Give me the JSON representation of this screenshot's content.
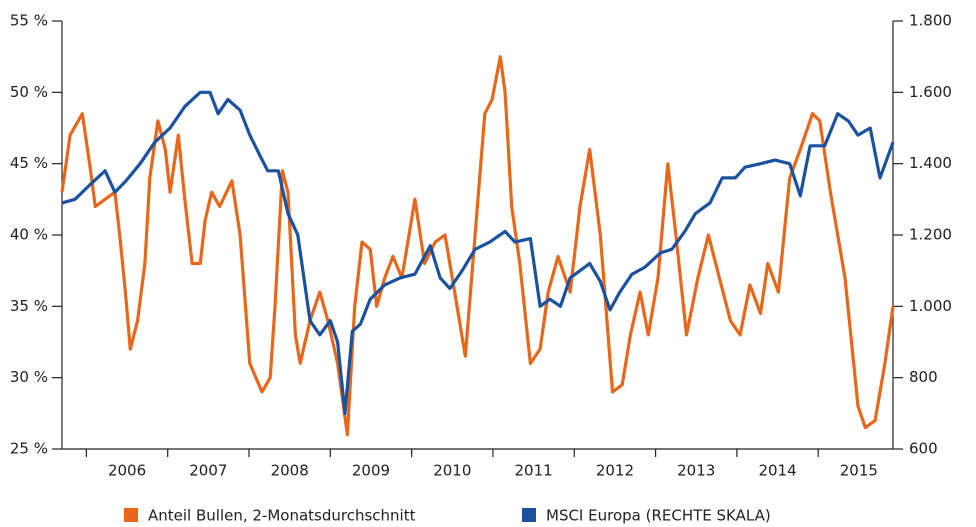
{
  "chart_data": {
    "type": "line",
    "xlim": [
      2005.7,
      2015.92
    ],
    "xticks": [
      2006,
      2007,
      2008,
      2009,
      2010,
      2011,
      2012,
      2013,
      2014,
      2015
    ],
    "ylim": [
      25,
      55
    ],
    "yticks": [
      {
        "value": 25,
        "label": "25 %"
      },
      {
        "value": 30,
        "label": "30 %"
      },
      {
        "value": 35,
        "label": "35 %"
      },
      {
        "value": 40,
        "label": "40 %"
      },
      {
        "value": 45,
        "label": "45 %"
      },
      {
        "value": 50,
        "label": "50 %"
      },
      {
        "value": 55,
        "label": "55 %"
      }
    ],
    "y2lim": [
      600,
      1800
    ],
    "y2ticks": [
      600,
      800,
      {
        "value": 1000,
        "label": "1.000"
      },
      {
        "value": 1200,
        "label": "1.200"
      },
      {
        "value": 1400,
        "label": "1.400"
      },
      {
        "value": 1600,
        "label": "1.600"
      },
      {
        "value": 1800,
        "label": "1.800"
      }
    ],
    "series": [
      {
        "name": "Anteil Bullen, 2-Monatsdurchschnitt",
        "color": "#e8671b",
        "x": [
          2005.7,
          2005.8,
          2005.95,
          2006.04,
          2006.11,
          2006.23,
          2006.35,
          2006.41,
          2006.48,
          2006.54,
          2006.63,
          2006.72,
          2006.78,
          2006.88,
          2006.97,
          2007.03,
          2007.13,
          2007.21,
          2007.3,
          2007.4,
          2007.46,
          2007.54,
          2007.64,
          2007.79,
          2007.89,
          2008.01,
          2008.16,
          2008.26,
          2008.32,
          2008.41,
          2008.48,
          2008.57,
          2008.63,
          2008.75,
          2008.87,
          2008.97,
          2009.09,
          2009.21,
          2009.3,
          2009.39,
          2009.49,
          2009.57,
          2009.67,
          2009.77,
          2009.88,
          2010.04,
          2010.16,
          2010.29,
          2010.41,
          2010.53,
          2010.66,
          2010.78,
          2010.9,
          2010.99,
          2011.09,
          2011.15,
          2011.23,
          2011.33,
          2011.46,
          2011.58,
          2011.68,
          2011.8,
          2011.95,
          2012.07,
          2012.19,
          2012.32,
          2012.47,
          2012.59,
          2012.69,
          2012.81,
          2012.91,
          2013.03,
          2013.15,
          2013.25,
          2013.38,
          2013.52,
          2013.65,
          2013.74,
          2013.92,
          2014.04,
          2014.16,
          2014.29,
          2014.38,
          2014.51,
          2014.65,
          2014.78,
          2014.93,
          2015.02,
          2015.15,
          2015.33,
          2015.49,
          2015.58,
          2015.7,
          2015.82,
          2015.92
        ],
        "values": [
          43,
          47,
          48.5,
          45,
          42,
          42.5,
          43,
          40,
          36,
          32,
          34,
          38,
          44,
          48,
          46,
          43,
          47,
          42.5,
          38,
          38,
          41,
          43,
          42,
          43.8,
          40,
          31,
          29,
          30,
          35,
          44.5,
          43,
          33,
          31,
          34,
          36,
          34,
          31,
          26,
          35,
          39.5,
          39,
          35,
          37,
          38.5,
          37,
          42.5,
          38,
          39.5,
          40,
          36,
          31.5,
          40,
          48.5,
          49.5,
          52.5,
          50,
          42,
          38,
          31,
          32,
          36,
          38.5,
          36,
          42,
          46,
          40,
          29,
          29.5,
          33,
          36,
          33,
          37,
          45,
          40,
          33,
          37,
          40,
          38,
          34,
          33,
          36.5,
          34.5,
          38,
          36,
          44,
          46,
          48.5,
          48,
          43,
          37,
          28,
          26.5,
          27,
          31,
          35
        ]
      },
      {
        "name": "MSCI Europa (RECHTE SKALA)",
        "color": "#1a52a0",
        "axis": "y2",
        "x": [
          2005.7,
          2005.86,
          2006.04,
          2006.23,
          2006.35,
          2006.48,
          2006.66,
          2006.84,
          2007.03,
          2007.21,
          2007.4,
          2007.52,
          2007.62,
          2007.74,
          2007.89,
          2008.01,
          2008.14,
          2008.23,
          2008.36,
          2008.48,
          2008.6,
          2008.75,
          2008.87,
          2009.0,
          2009.09,
          2009.18,
          2009.27,
          2009.37,
          2009.49,
          2009.67,
          2009.86,
          2010.04,
          2010.23,
          2010.35,
          2010.47,
          2010.62,
          2010.78,
          2010.96,
          2011.15,
          2011.27,
          2011.46,
          2011.58,
          2011.7,
          2011.83,
          2011.95,
          2012.07,
          2012.19,
          2012.32,
          2012.44,
          2012.56,
          2012.71,
          2012.87,
          2013.06,
          2013.2,
          2013.36,
          2013.49,
          2013.67,
          2013.82,
          2013.98,
          2014.1,
          2014.29,
          2014.47,
          2014.65,
          2014.78,
          2014.9,
          2015.08,
          2015.24,
          2015.37,
          2015.49,
          2015.64,
          2015.76,
          2015.92
        ],
        "values": [
          1290,
          1300,
          1340,
          1380,
          1320,
          1350,
          1400,
          1460,
          1500,
          1560,
          1600,
          1600,
          1540,
          1580,
          1550,
          1480,
          1420,
          1380,
          1380,
          1260,
          1200,
          960,
          920,
          960,
          900,
          700,
          930,
          950,
          1020,
          1060,
          1080,
          1090,
          1170,
          1080,
          1050,
          1100,
          1160,
          1180,
          1210,
          1180,
          1190,
          1000,
          1020,
          1000,
          1080,
          1100,
          1120,
          1070,
          990,
          1040,
          1090,
          1110,
          1150,
          1160,
          1210,
          1260,
          1290,
          1360,
          1360,
          1390,
          1400,
          1410,
          1400,
          1310,
          1450,
          1450,
          1540,
          1520,
          1480,
          1500,
          1360,
          1460
        ]
      }
    ]
  }
}
